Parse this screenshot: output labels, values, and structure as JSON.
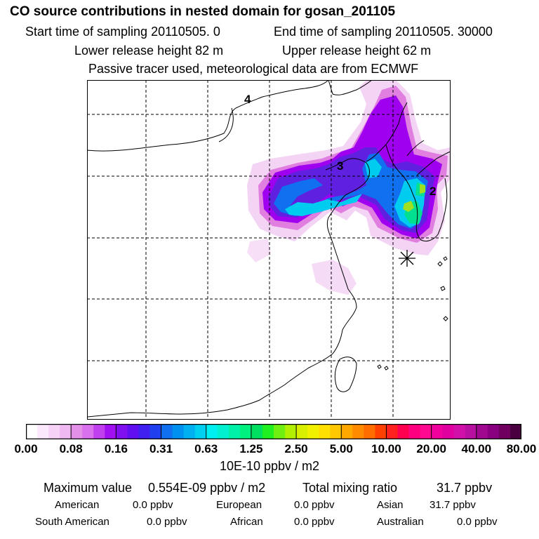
{
  "header": {
    "title": "CO  source contributions in nested domain for gosan_201105",
    "sampling_start": "Start time of sampling 20110505.     0",
    "sampling_end": "End time of sampling 20110505. 30000",
    "release_lower": "Lower release height   82 m",
    "release_upper": "Upper release height   62 m",
    "note": "Passive tracer used, meteorological data are from ECMWF"
  },
  "map": {
    "region_labels": [
      "4",
      "3",
      "2"
    ],
    "receptor_marker": "asterisk-marker",
    "field_colors": {
      "very_low": "#f2ccf2",
      "low": "#e07fe0",
      "mid_low": "#a000f0",
      "mid": "#6020e0",
      "mid_high": "#1070f0",
      "high": "#00ccf0",
      "higher": "#00e090",
      "peak": "#a0e020"
    }
  },
  "colorbar": {
    "tick_labels": [
      "0.00",
      "0.08",
      "0.16",
      "0.31",
      "0.63",
      "1.25",
      "2.50",
      "5.00",
      "10.00",
      "20.00",
      "40.00",
      "80.00"
    ],
    "colors": [
      "#ffffff",
      "#fce8fc",
      "#f7d2f7",
      "#f0b8f0",
      "#e390e8",
      "#d970ee",
      "#c040f0",
      "#a010f0",
      "#8010f0",
      "#6010f0",
      "#4020f0",
      "#2040f0",
      "#1070f0",
      "#0090f0",
      "#00b0f0",
      "#00d0f0",
      "#00f0f0",
      "#00f0d0",
      "#00f0a8",
      "#00f080",
      "#00e060",
      "#20f020",
      "#70f010",
      "#b0f000",
      "#d8f000",
      "#f0f000",
      "#ffe000",
      "#ffc800",
      "#ffa800",
      "#ff8c00",
      "#ff6c00",
      "#ff4000",
      "#ff2020",
      "#ff0050",
      "#ff0080",
      "#ff0a90",
      "#f0009c",
      "#e000a0",
      "#d010a8",
      "#b810a0",
      "#a00890",
      "#880080",
      "#700060",
      "#4a0040"
    ],
    "units": "10E-10 ppbv / m2"
  },
  "stats": {
    "max_label": "Maximum value",
    "max_value": "0.554E-09 ppbv / m2",
    "total_label": "Total mixing ratio",
    "total_value": "31.7 ppbv",
    "american_label": "American",
    "american_value": "0.0 ppbv",
    "european_label": "European",
    "european_value": "0.0 ppbv",
    "asian_label": "Asian",
    "asian_value": "31.7 ppbv",
    "south_american_label": "South American",
    "south_american_value": "0.0 ppbv",
    "african_label": "African",
    "african_value": "0.0 ppbv",
    "australian_label": "Australian",
    "australian_value": "0.0 ppbv"
  }
}
